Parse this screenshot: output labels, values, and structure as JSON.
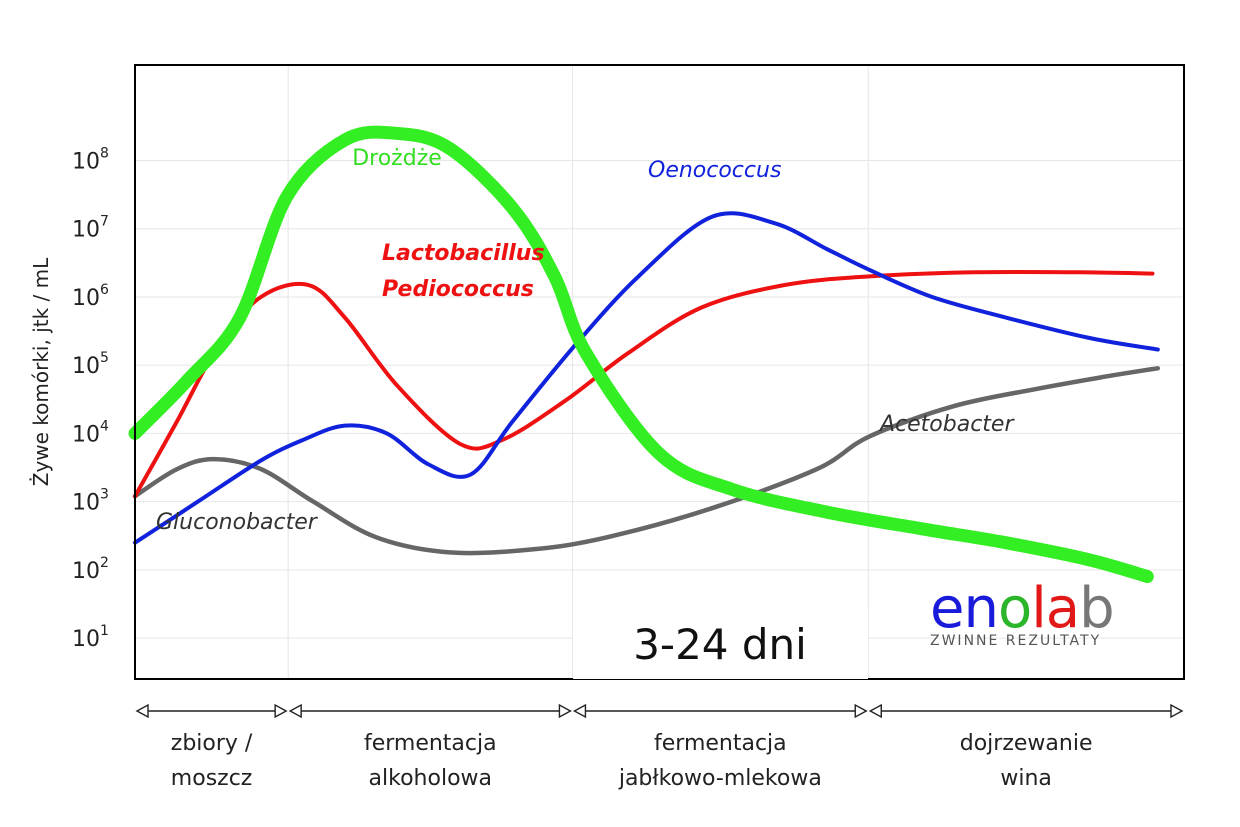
{
  "chart_data": {
    "type": "line",
    "title": "",
    "ylabel": "Żywe komórki, jtk / mL",
    "xlabel": "3-24 dni",
    "y_scale": "log",
    "ylim": [
      1,
      1000000000
    ],
    "y_ticks": [
      {
        "base": "10",
        "exp": "1"
      },
      {
        "base": "10",
        "exp": "2"
      },
      {
        "base": "10",
        "exp": "3"
      },
      {
        "base": "10",
        "exp": "4"
      },
      {
        "base": "10",
        "exp": "5"
      },
      {
        "base": "10",
        "exp": "6"
      },
      {
        "base": "10",
        "exp": "7"
      },
      {
        "base": "10",
        "exp": "8"
      }
    ],
    "x_range": [
      0,
      100
    ],
    "grid": true,
    "phases": [
      {
        "label1": "zbiory /",
        "label2": "moszcz",
        "start": 0,
        "end": 14.6
      },
      {
        "label1": "fermentacja",
        "label2": "alkoholowa",
        "start": 14.6,
        "end": 41.7
      },
      {
        "label1": "fermentacja",
        "label2": "jabłkowo-mlekowa",
        "start": 41.7,
        "end": 69.9
      },
      {
        "label1": "dojrzewanie",
        "label2": "wina",
        "start": 69.9,
        "end": 100
      }
    ],
    "series": [
      {
        "name": "Drożdże",
        "color": "#33ee22",
        "x": [
          0,
          5,
          10,
          14.5,
          20,
          25,
          30,
          36,
          40,
          43,
          50,
          57,
          66,
          75,
          83,
          91,
          96.5
        ],
        "y": [
          10000,
          60000,
          500000,
          30000000,
          200000000,
          250000000,
          150000000,
          20000000,
          2000000,
          150000,
          5000,
          1500,
          700,
          400,
          250,
          140,
          80
        ]
      },
      {
        "name": "Lactobacillus Pediococcus",
        "color": "#ee1111",
        "x": [
          0,
          4,
          8,
          12,
          16.5,
          20,
          25,
          31,
          35,
          41,
          47,
          54,
          62,
          70,
          80,
          90,
          97
        ],
        "y": [
          1200,
          15000,
          200000,
          1000000,
          1500000,
          500000,
          50000,
          7000,
          8000,
          30000,
          150000,
          700000,
          1500000,
          2000000,
          2300000,
          2300000,
          2200000
        ]
      },
      {
        "name": "Oenococcus",
        "color": "#1122dd",
        "x": [
          0,
          6,
          12,
          16,
          20,
          24,
          28,
          32,
          36,
          42,
          48,
          55,
          61,
          66,
          70,
          76,
          83,
          91,
          97.5
        ],
        "y": [
          250,
          1000,
          4000,
          8000,
          13000,
          10000,
          3500,
          2500,
          15000,
          200000,
          2000000,
          15000000,
          12000000,
          5000000,
          2500000,
          1000000,
          500000,
          250000,
          170000
        ]
      },
      {
        "name": "Gluconobacter",
        "color": "#666666",
        "x": [
          0,
          4,
          7.5,
          12,
          17,
          23,
          30,
          38,
          45,
          55,
          65,
          70,
          78,
          86,
          93,
          97.5
        ],
        "y": [
          1200,
          3000,
          4200,
          3000,
          1000,
          300,
          180,
          200,
          300,
          800,
          3000,
          9000,
          25000,
          45000,
          70000,
          90000
        ]
      },
      {
        "name": "Acetobacter",
        "color": "#666666",
        "x": [],
        "y": []
      }
    ]
  },
  "brand": {
    "name_e": "e",
    "name_n": "n",
    "name_o": "o",
    "name_l": "l",
    "name_a": "a",
    "name_b": "b",
    "tagline": "ZWINNE REZULTATY",
    "color_blue": "#1a1adb",
    "color_green": "#2bb52b",
    "color_red": "#e01818",
    "color_gray": "#777777"
  }
}
